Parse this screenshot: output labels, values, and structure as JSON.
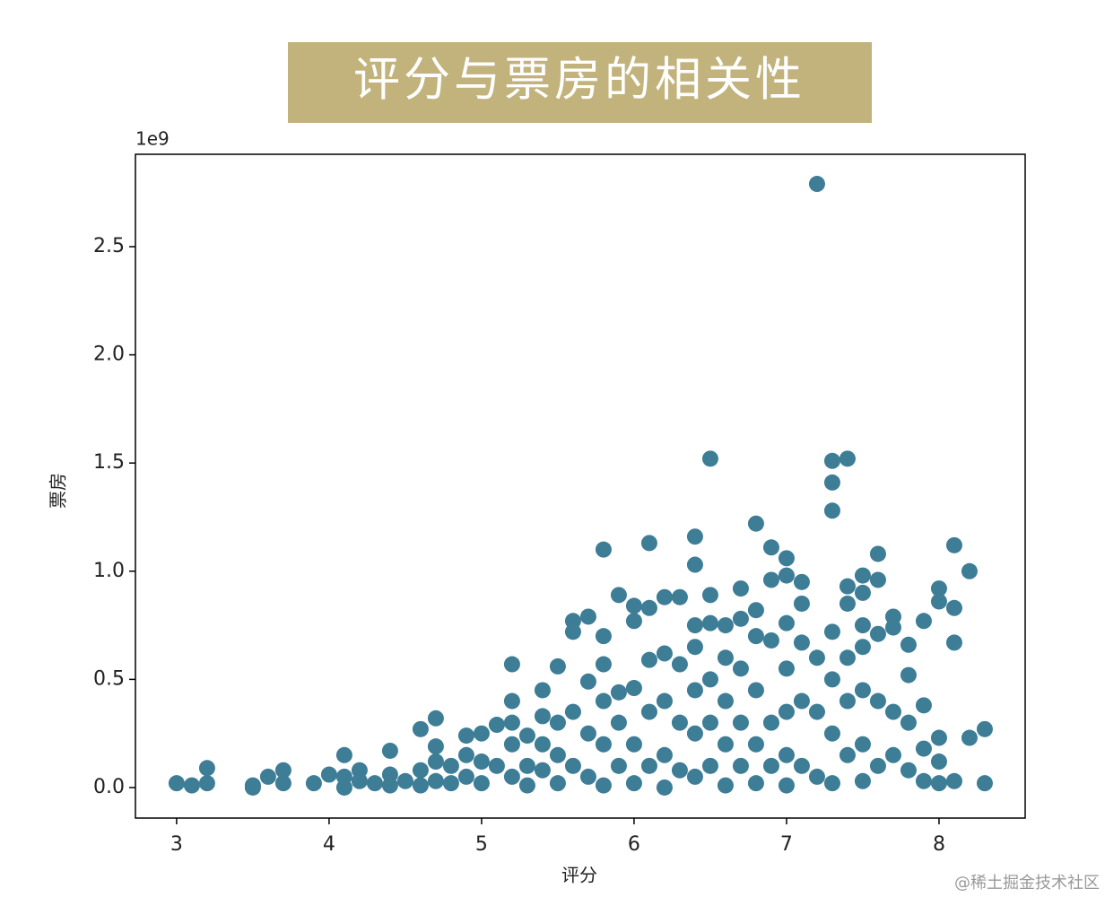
{
  "chart_data": {
    "type": "scatter",
    "title": "评分与票房的相关性",
    "x_label": "评分",
    "y_label": "票房",
    "y_offset_label": "1e9",
    "watermark": "@稀土掘金技术社区",
    "color": "#3d7d96",
    "x": [
      3.0,
      3.1,
      3.2,
      3.2,
      3.5,
      3.5,
      3.6,
      3.7,
      3.7,
      3.9,
      4.0,
      4.1,
      4.1,
      4.1,
      4.2,
      4.2,
      4.3,
      4.4,
      4.4,
      4.4,
      4.5,
      4.6,
      4.6,
      4.6,
      4.7,
      4.7,
      4.7,
      4.7,
      4.8,
      4.8,
      4.9,
      4.9,
      4.9,
      5.0,
      5.0,
      5.0,
      5.1,
      5.1,
      5.2,
      5.2,
      5.2,
      5.2,
      5.2,
      5.3,
      5.3,
      5.3,
      5.4,
      5.4,
      5.4,
      5.4,
      5.5,
      5.5,
      5.5,
      5.5,
      5.6,
      5.6,
      5.6,
      5.6,
      5.7,
      5.7,
      5.7,
      5.7,
      5.8,
      5.8,
      5.8,
      5.8,
      5.8,
      5.8,
      5.9,
      5.9,
      5.9,
      5.9,
      6.0,
      6.0,
      6.0,
      6.0,
      6.0,
      6.1,
      6.1,
      6.1,
      6.1,
      6.1,
      6.2,
      6.2,
      6.2,
      6.2,
      6.2,
      6.3,
      6.3,
      6.3,
      6.3,
      6.4,
      6.4,
      6.4,
      6.4,
      6.4,
      6.4,
      6.4,
      6.5,
      6.5,
      6.5,
      6.5,
      6.5,
      6.5,
      6.6,
      6.6,
      6.6,
      6.6,
      6.6,
      6.7,
      6.7,
      6.7,
      6.7,
      6.7,
      6.8,
      6.8,
      6.8,
      6.8,
      6.8,
      6.8,
      6.9,
      6.9,
      6.9,
      6.9,
      6.9,
      7.0,
      7.0,
      7.0,
      7.0,
      7.0,
      7.0,
      7.0,
      7.1,
      7.1,
      7.1,
      7.1,
      7.1,
      7.2,
      7.2,
      7.2,
      7.2,
      7.3,
      7.3,
      7.3,
      7.3,
      7.3,
      7.3,
      7.3,
      7.4,
      7.4,
      7.4,
      7.4,
      7.4,
      7.4,
      7.5,
      7.5,
      7.5,
      7.5,
      7.5,
      7.5,
      7.5,
      7.6,
      7.6,
      7.6,
      7.6,
      7.6,
      7.7,
      7.7,
      7.7,
      7.7,
      7.8,
      7.8,
      7.8,
      7.8,
      7.9,
      7.9,
      7.9,
      7.9,
      8.0,
      8.0,
      8.0,
      8.0,
      8.0,
      8.1,
      8.1,
      8.1,
      8.1,
      8.2,
      8.2,
      8.3,
      8.3
    ],
    "y": [
      0.02,
      0.01,
      0.02,
      0.09,
      0.0,
      0.01,
      0.05,
      0.08,
      0.02,
      0.02,
      0.06,
      0.15,
      0.0,
      0.05,
      0.08,
      0.03,
      0.02,
      0.17,
      0.06,
      0.01,
      0.03,
      0.27,
      0.08,
      0.01,
      0.32,
      0.19,
      0.12,
      0.03,
      0.1,
      0.02,
      0.24,
      0.15,
      0.05,
      0.25,
      0.12,
      0.02,
      0.29,
      0.1,
      0.57,
      0.4,
      0.3,
      0.2,
      0.05,
      0.24,
      0.1,
      0.01,
      0.45,
      0.33,
      0.2,
      0.08,
      0.56,
      0.3,
      0.15,
      0.02,
      0.77,
      0.72,
      0.35,
      0.1,
      0.79,
      0.49,
      0.25,
      0.05,
      1.1,
      0.7,
      0.57,
      0.4,
      0.2,
      0.01,
      0.89,
      0.44,
      0.3,
      0.1,
      0.84,
      0.77,
      0.46,
      0.2,
      0.02,
      1.13,
      0.83,
      0.59,
      0.35,
      0.1,
      0.88,
      0.62,
      0.4,
      0.15,
      0.0,
      0.88,
      0.57,
      0.3,
      0.08,
      1.16,
      1.03,
      0.75,
      0.65,
      0.45,
      0.25,
      0.05,
      1.52,
      0.89,
      0.76,
      0.5,
      0.3,
      0.1,
      0.75,
      0.6,
      0.4,
      0.2,
      0.01,
      0.92,
      0.78,
      0.55,
      0.3,
      0.1,
      1.22,
      0.82,
      0.7,
      0.45,
      0.2,
      0.02,
      1.11,
      0.96,
      0.68,
      0.3,
      0.1,
      1.06,
      0.98,
      0.76,
      0.55,
      0.35,
      0.15,
      0.01,
      0.95,
      0.85,
      0.67,
      0.4,
      0.1,
      2.79,
      0.6,
      0.35,
      0.05,
      1.51,
      1.41,
      1.28,
      0.72,
      0.5,
      0.25,
      0.02,
      1.52,
      0.93,
      0.85,
      0.6,
      0.4,
      0.15,
      0.98,
      0.9,
      0.75,
      0.65,
      0.45,
      0.2,
      0.03,
      1.08,
      0.96,
      0.71,
      0.4,
      0.1,
      0.79,
      0.74,
      0.35,
      0.15,
      0.66,
      0.52,
      0.3,
      0.08,
      0.77,
      0.38,
      0.18,
      0.03,
      0.92,
      0.86,
      0.23,
      0.12,
      0.02,
      1.12,
      0.83,
      0.67,
      0.03,
      1.0,
      0.23,
      0.27,
      0.02
    ],
    "xlim": [
      2.73,
      8.565
    ],
    "ylim": [
      -0.141,
      2.927
    ],
    "xticks": [
      3,
      4,
      5,
      6,
      7,
      8
    ],
    "yticks": [
      {
        "value": 0,
        "label": "0.0"
      },
      0.5,
      {
        "value": 1,
        "label": "1.0"
      },
      1.5,
      {
        "value": 2,
        "label": "2.0"
      },
      2.5
    ]
  }
}
